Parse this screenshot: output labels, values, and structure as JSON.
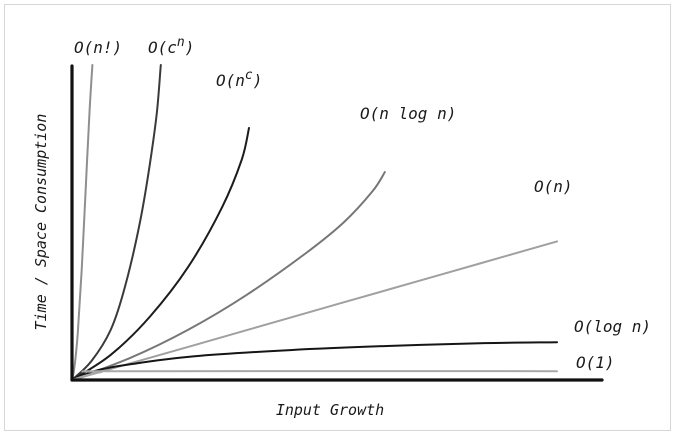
{
  "chart_data": {
    "type": "line",
    "title": "",
    "xlabel": "Input Growth",
    "ylabel": "Time / Space Consumption",
    "grid": false,
    "legend": "direct-labels",
    "x_ticks": [],
    "y_ticks": [],
    "series": [
      {
        "name": "O(n!)",
        "color": "#8f8f8f",
        "points": [
          [
            0,
            0
          ],
          [
            0.005,
            0.04
          ],
          [
            0.012,
            0.15
          ],
          [
            0.02,
            0.35
          ],
          [
            0.028,
            0.6
          ],
          [
            0.036,
            0.85
          ],
          [
            0.042,
            1.0
          ]
        ]
      },
      {
        "name": "O(c^n)",
        "color": "#3a3a3a",
        "points": [
          [
            0,
            0
          ],
          [
            0.04,
            0.06
          ],
          [
            0.08,
            0.16
          ],
          [
            0.11,
            0.3
          ],
          [
            0.14,
            0.5
          ],
          [
            0.16,
            0.68
          ],
          [
            0.175,
            0.85
          ],
          [
            0.183,
            1.0
          ]
        ]
      },
      {
        "name": "O(n^c)",
        "color": "#1c1c1c",
        "points": [
          [
            0,
            0
          ],
          [
            0.08,
            0.08
          ],
          [
            0.16,
            0.2
          ],
          [
            0.24,
            0.36
          ],
          [
            0.31,
            0.55
          ],
          [
            0.35,
            0.7
          ],
          [
            0.365,
            0.8
          ]
        ]
      },
      {
        "name": "O(n log n)",
        "color": "#777777",
        "points": [
          [
            0,
            0
          ],
          [
            0.12,
            0.07
          ],
          [
            0.24,
            0.16
          ],
          [
            0.36,
            0.27
          ],
          [
            0.48,
            0.4
          ],
          [
            0.56,
            0.5
          ],
          [
            0.62,
            0.6
          ],
          [
            0.645,
            0.66
          ]
        ]
      },
      {
        "name": "O(n)",
        "color": "#a0a0a0",
        "points": [
          [
            0,
            0
          ],
          [
            0.25,
            0.11
          ],
          [
            0.5,
            0.22
          ],
          [
            0.75,
            0.33
          ],
          [
            1.0,
            0.44
          ]
        ]
      },
      {
        "name": "O(log n)",
        "color": "#151515",
        "points": [
          [
            0,
            0
          ],
          [
            0.05,
            0.03
          ],
          [
            0.12,
            0.05
          ],
          [
            0.25,
            0.075
          ],
          [
            0.45,
            0.095
          ],
          [
            0.65,
            0.108
          ],
          [
            0.85,
            0.117
          ],
          [
            1.0,
            0.12
          ]
        ]
      },
      {
        "name": "O(1)",
        "color": "#a8a8a8",
        "points": [
          [
            0,
            0
          ],
          [
            0.03,
            0.015
          ],
          [
            0.06,
            0.025
          ],
          [
            0.1,
            0.028
          ],
          [
            1.0,
            0.028
          ]
        ]
      }
    ]
  }
}
